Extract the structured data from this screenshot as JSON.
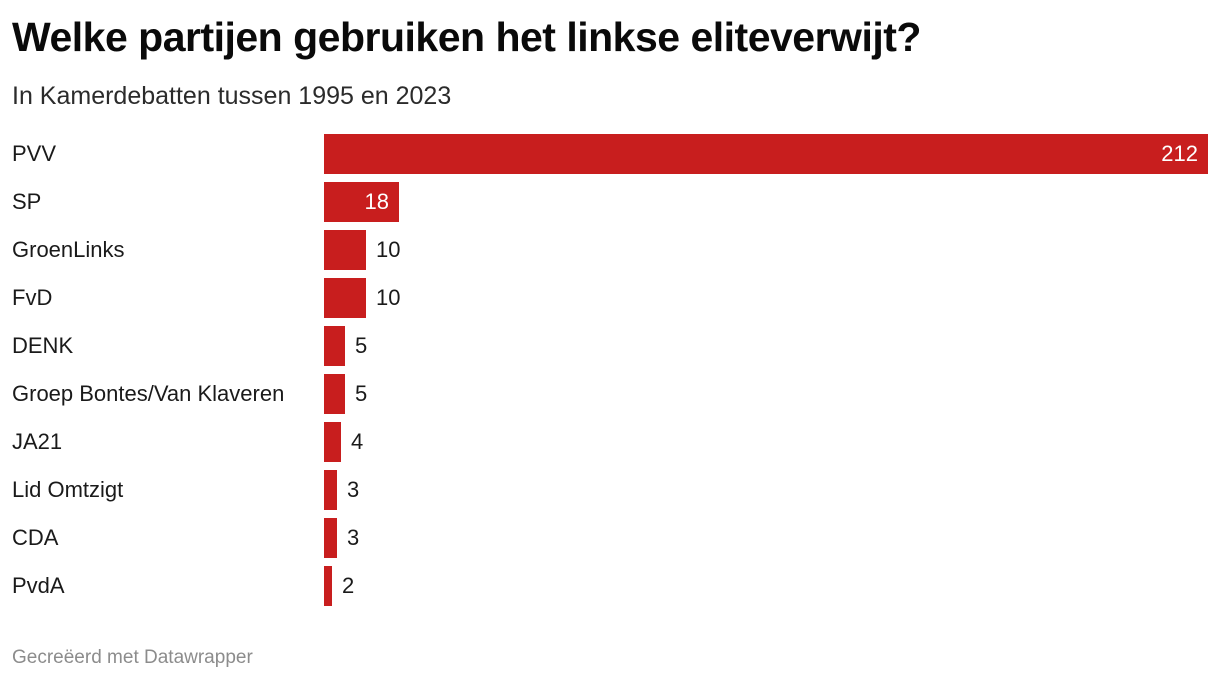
{
  "colors": {
    "bar": "#c81e1e",
    "label_inside": "#ffffff",
    "label_outside": "#1a1a1a"
  },
  "footer": {
    "credit": "Gecreëerd met Datawrapper"
  },
  "chart_data": {
    "type": "bar",
    "orientation": "horizontal",
    "title": "Welke partijen gebruiken het linkse eliteverwijt?",
    "subtitle": "In Kamerdebatten tussen 1995 en 2023",
    "categories": [
      "PVV",
      "SP",
      "GroenLinks",
      "FvD",
      "DENK",
      "Groep Bontes/Van Klaveren",
      "JA21",
      "Lid Omtzigt",
      "CDA",
      "PvdA"
    ],
    "values": [
      212,
      18,
      10,
      10,
      5,
      5,
      4,
      3,
      3,
      2
    ],
    "xlim": [
      0,
      212
    ],
    "grid": false,
    "legend": "none",
    "data_labels": true
  }
}
